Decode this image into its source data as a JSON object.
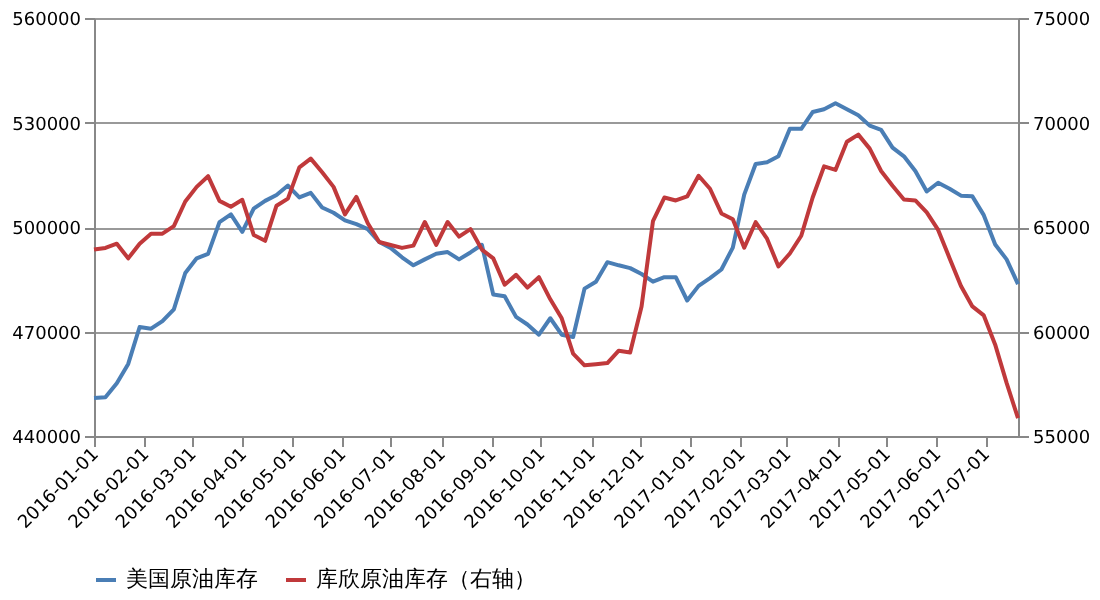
{
  "chart_data": {
    "type": "line",
    "x": [
      "2016-01-01",
      "2016-01-08",
      "2016-01-15",
      "2016-01-22",
      "2016-01-29",
      "2016-02-05",
      "2016-02-12",
      "2016-02-19",
      "2016-02-26",
      "2016-03-04",
      "2016-03-11",
      "2016-03-18",
      "2016-03-25",
      "2016-04-01",
      "2016-04-08",
      "2016-04-15",
      "2016-04-22",
      "2016-04-29",
      "2016-05-06",
      "2016-05-13",
      "2016-05-20",
      "2016-05-27",
      "2016-06-03",
      "2016-06-10",
      "2016-06-17",
      "2016-06-24",
      "2016-07-01",
      "2016-07-08",
      "2016-07-15",
      "2016-07-22",
      "2016-07-29",
      "2016-08-05",
      "2016-08-12",
      "2016-08-19",
      "2016-08-26",
      "2016-09-02",
      "2016-09-09",
      "2016-09-16",
      "2016-09-23",
      "2016-09-30",
      "2016-10-07",
      "2016-10-14",
      "2016-10-21",
      "2016-10-28",
      "2016-11-04",
      "2016-11-11",
      "2016-11-18",
      "2016-11-25",
      "2016-12-02",
      "2016-12-09",
      "2016-12-16",
      "2016-12-23",
      "2016-12-30",
      "2017-01-06",
      "2017-01-13",
      "2017-01-20",
      "2017-01-27",
      "2017-02-03",
      "2017-02-10",
      "2017-02-17",
      "2017-02-24",
      "2017-03-03",
      "2017-03-10",
      "2017-03-17",
      "2017-03-24",
      "2017-03-31",
      "2017-04-07",
      "2017-04-14",
      "2017-04-21",
      "2017-04-28",
      "2017-05-05",
      "2017-05-12",
      "2017-05-19",
      "2017-05-26",
      "2017-06-02",
      "2017-06-09",
      "2017-06-16",
      "2017-06-23",
      "2017-06-30",
      "2017-07-07",
      "2017-07-14",
      "2017-07-21"
    ],
    "series": [
      {
        "name": "美国原油库存",
        "color": "#4a7eb5",
        "values": [
          450940,
          451100,
          455150,
          460700,
          471300,
          470800,
          473000,
          476350,
          486800,
          491000,
          492300,
          501400,
          503600,
          498600,
          505300,
          507500,
          509200,
          511900,
          508500,
          509800,
          505600,
          504100,
          501900,
          500800,
          499400,
          495700,
          494000,
          491300,
          489000,
          490700,
          492300,
          492800,
          490700,
          492700,
          494900,
          480600,
          480100,
          474200,
          472000,
          469100,
          473800,
          469080,
          468400,
          482300,
          484300,
          489900,
          489000,
          488200,
          486500,
          484300,
          485600,
          485600,
          478900,
          483100,
          485300,
          487800,
          494100,
          509300,
          518100,
          518600,
          520300,
          528200,
          528200,
          533000,
          533800,
          535500,
          533800,
          532100,
          529100,
          527900,
          522800,
          520300,
          516100,
          510200,
          512700,
          511000,
          509000,
          508800,
          503400,
          495000,
          490700,
          483600
        ]
      },
      {
        "name": "库欣原油库存（右轴）",
        "color": "#c0393b",
        "axis": "y2",
        "values": [
          63920,
          64000,
          64200,
          63500,
          64200,
          64680,
          64680,
          65040,
          66220,
          66920,
          67430,
          66250,
          65970,
          66300,
          64620,
          64340,
          66020,
          66360,
          67850,
          68270,
          67620,
          66920,
          65600,
          66440,
          65180,
          64280,
          64140,
          64000,
          64110,
          65240,
          64140,
          65240,
          64540,
          64900,
          63920,
          63500,
          62240,
          62710,
          62100,
          62600,
          61540,
          60630,
          58940,
          58380,
          58430,
          58490,
          59080,
          59000,
          61200,
          65280,
          66410,
          66270,
          66460,
          67450,
          66830,
          65650,
          65370,
          64010,
          65230,
          64440,
          63110,
          63730,
          64580,
          66410,
          67900,
          67730,
          69080,
          69420,
          68750,
          67680,
          66970,
          66320,
          66270,
          65700,
          64860,
          63510,
          62180,
          61200,
          60770,
          59370,
          57540,
          55850
        ]
      }
    ],
    "xlim": [
      "2016-01-01",
      "2017-07-21"
    ],
    "xticks": [
      "2016-01-01",
      "2016-02-01",
      "2016-03-01",
      "2016-04-01",
      "2016-05-01",
      "2016-06-01",
      "2016-07-01",
      "2016-08-01",
      "2016-09-01",
      "2016-10-01",
      "2016-11-01",
      "2016-12-01",
      "2017-01-01",
      "2017-02-01",
      "2017-03-01",
      "2017-04-01",
      "2017-05-01",
      "2017-06-01",
      "2017-07-01"
    ],
    "ylim": [
      440000,
      560000
    ],
    "yticks": [
      440000,
      470000,
      500000,
      530000,
      560000
    ],
    "y2lim": [
      55000,
      75000
    ],
    "y2ticks": [
      55000,
      60000,
      65000,
      70000,
      75000
    ],
    "grid": "y",
    "legend": "bottom",
    "marker": "none",
    "line_style": "solid"
  }
}
